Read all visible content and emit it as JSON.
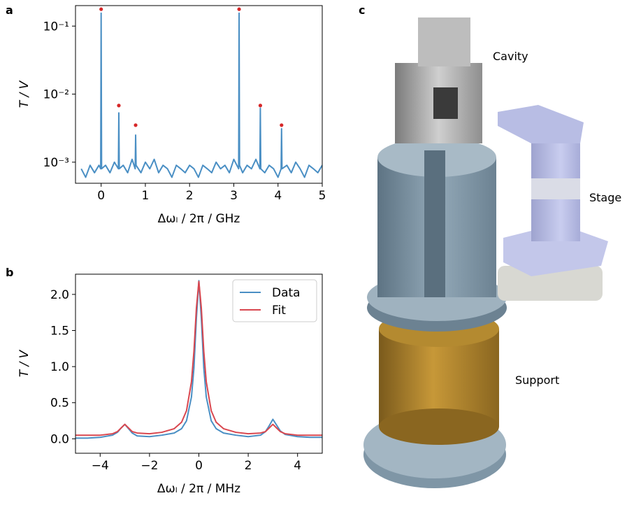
{
  "chart_data": [
    {
      "type": "line",
      "panel": "a",
      "xlabel": "Δωₗ / 2π / GHz",
      "ylabel": "T / V",
      "yscale": "log",
      "xlim": [
        -0.58,
        5
      ],
      "xticks": [
        0,
        1,
        2,
        3,
        4,
        5
      ],
      "ylim": [
        0.00049,
        0.2
      ],
      "yticks": [
        {
          "value": 0.1,
          "label": "10⁻¹"
        },
        {
          "value": 0.01,
          "label": "10⁻²"
        },
        {
          "value": 0.001,
          "label": "10⁻³"
        }
      ],
      "series": [
        {
          "type": "line",
          "color": "#4a8fc4",
          "x": [
            -0.45,
            -0.35,
            -0.25,
            -0.15,
            -0.05,
            -0.01,
            0,
            0.01,
            0.1,
            0.2,
            0.3,
            0.39,
            0.4,
            0.41,
            0.5,
            0.6,
            0.7,
            0.77,
            0.78,
            0.79,
            0.9,
            1.0,
            1.1,
            1.2,
            1.3,
            1.4,
            1.5,
            1.6,
            1.7,
            1.8,
            1.9,
            2.0,
            2.1,
            2.2,
            2.3,
            2.4,
            2.5,
            2.6,
            2.7,
            2.8,
            2.9,
            3.0,
            3.11,
            3.12,
            3.13,
            3.2,
            3.3,
            3.4,
            3.5,
            3.59,
            3.6,
            3.61,
            3.7,
            3.8,
            3.9,
            4.0,
            4.07,
            4.08,
            4.09,
            4.2,
            4.3,
            4.4,
            4.5,
            4.6,
            4.7,
            4.8,
            4.9,
            5.0
          ],
          "values": [
            0.0008,
            0.0006,
            0.0009,
            0.0007,
            0.0009,
            0.0008,
            0.155,
            0.0008,
            0.0009,
            0.0007,
            0.001,
            0.0008,
            0.0053,
            0.0008,
            0.0009,
            0.0007,
            0.0011,
            0.0008,
            0.0025,
            0.0009,
            0.0007,
            0.001,
            0.0008,
            0.0011,
            0.0007,
            0.0009,
            0.0008,
            0.0006,
            0.0009,
            0.0008,
            0.0007,
            0.0009,
            0.0008,
            0.0006,
            0.0009,
            0.0008,
            0.0007,
            0.001,
            0.0008,
            0.0009,
            0.0007,
            0.0011,
            0.0008,
            0.155,
            0.0009,
            0.0007,
            0.0009,
            0.0008,
            0.0011,
            0.0008,
            0.0062,
            0.0008,
            0.0007,
            0.0009,
            0.0008,
            0.0006,
            0.0008,
            0.0031,
            0.0008,
            0.0009,
            0.0007,
            0.001,
            0.0008,
            0.0006,
            0.0009,
            0.0008,
            0.0007,
            0.0009
          ]
        },
        {
          "type": "scatter",
          "color": "#d62728",
          "x": [
            0,
            0.4,
            0.78,
            3.12,
            3.6,
            4.08
          ],
          "values": [
            0.177,
            0.0068,
            0.0035,
            0.177,
            0.0068,
            0.0035
          ]
        }
      ]
    },
    {
      "type": "line",
      "panel": "b",
      "xlabel": "Δωₗ / 2π / MHz",
      "ylabel": "T / V",
      "xlim": [
        -5,
        5
      ],
      "xticks": [
        {
          "value": -4,
          "label": "−4"
        },
        {
          "value": -2,
          "label": "−2"
        },
        0,
        2,
        4
      ],
      "ylim": [
        -0.2,
        2.28
      ],
      "yticks": [
        {
          "value": 0,
          "label": "0.0"
        },
        0.5,
        {
          "value": 1,
          "label": "1.0"
        },
        1.5,
        {
          "value": 2,
          "label": "2.0"
        }
      ],
      "legend": "upper right",
      "x": [
        -5,
        -4.5,
        -4,
        -3.5,
        -3.3,
        -3.15,
        -3,
        -2.85,
        -2.7,
        -2.5,
        -2,
        -1.5,
        -1,
        -0.7,
        -0.5,
        -0.3,
        -0.2,
        -0.1,
        0,
        0.1,
        0.2,
        0.3,
        0.5,
        0.7,
        1,
        1.5,
        2,
        2.5,
        2.7,
        2.85,
        3,
        3.15,
        3.3,
        3.5,
        4,
        4.5,
        5
      ],
      "series": [
        {
          "name": "Data",
          "type": "line",
          "color": "#4a8fc4",
          "values": [
            0.01,
            0.01,
            0.02,
            0.05,
            0.09,
            0.15,
            0.2,
            0.14,
            0.08,
            0.04,
            0.03,
            0.05,
            0.08,
            0.14,
            0.25,
            0.58,
            0.98,
            1.67,
            2.19,
            1.67,
            0.98,
            0.58,
            0.25,
            0.14,
            0.08,
            0.05,
            0.03,
            0.05,
            0.1,
            0.18,
            0.27,
            0.19,
            0.11,
            0.06,
            0.03,
            0.02,
            0.02
          ]
        },
        {
          "name": "Fit",
          "type": "line",
          "color": "#d9474f",
          "values": [
            0.05,
            0.05,
            0.05,
            0.07,
            0.1,
            0.15,
            0.2,
            0.15,
            0.1,
            0.08,
            0.07,
            0.09,
            0.14,
            0.23,
            0.39,
            0.79,
            1.21,
            1.81,
            2.18,
            1.81,
            1.21,
            0.79,
            0.39,
            0.23,
            0.14,
            0.09,
            0.07,
            0.08,
            0.1,
            0.15,
            0.2,
            0.15,
            0.1,
            0.07,
            0.05,
            0.05,
            0.05
          ]
        }
      ]
    }
  ],
  "illustration": {
    "panel": "c",
    "labels": [
      "Cavity",
      "Stage",
      "Support"
    ]
  }
}
